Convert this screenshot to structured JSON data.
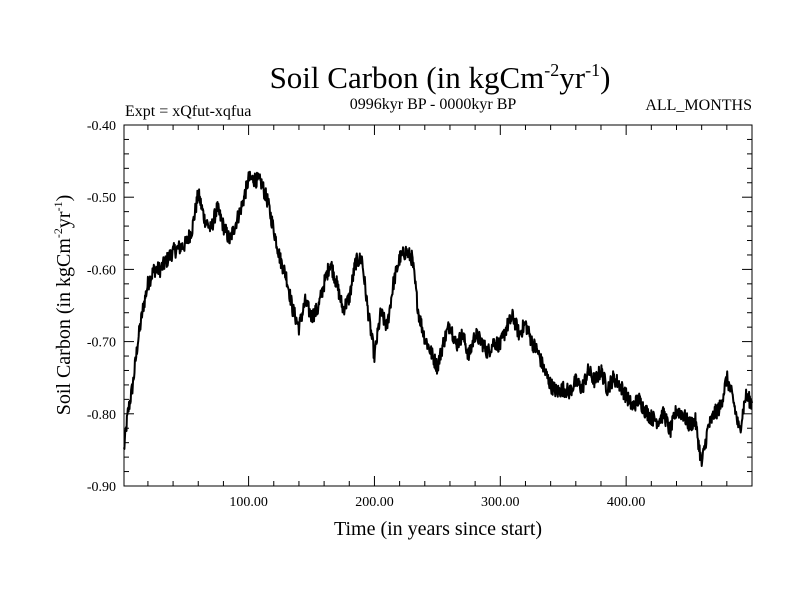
{
  "chart_data": {
    "type": "line",
    "title": {
      "main": "Soil Carbon (in kgCm",
      "sup1": "-2",
      "mid": "yr",
      "sup2": "-1",
      "end": ")"
    },
    "expt_label": "Expt = xQfut-xqfua",
    "period_label": "0996kyr BP - 0000kyr BP",
    "months_label": "ALL_MONTHS",
    "ylabel": {
      "main": "Soil Carbon (in kgCm",
      "sup1": "-2",
      "mid": "yr",
      "sup2": "-1",
      "end": ")"
    },
    "xlabel": "Time (in years since start)",
    "xlim": [
      1,
      500
    ],
    "ylim": [
      -0.9,
      -0.4
    ],
    "xticks": [
      100,
      200,
      300,
      400
    ],
    "xtick_labels": [
      "100.00",
      "200.00",
      "300.00",
      "400.00"
    ],
    "yticks": [
      -0.4,
      -0.5,
      -0.6,
      -0.7,
      -0.8,
      -0.9
    ],
    "ytick_labels": [
      "-0.40",
      "-0.50",
      "-0.60",
      "-0.70",
      "-0.80",
      "-0.90"
    ],
    "series": [
      {
        "name": "Soil Carbon",
        "color": "#000000",
        "x": [
          1,
          4,
          8,
          12,
          16,
          20,
          25,
          30,
          40,
          50,
          55,
          60,
          65,
          70,
          75,
          80,
          85,
          90,
          95,
          100,
          105,
          110,
          115,
          120,
          125,
          130,
          135,
          140,
          145,
          150,
          155,
          160,
          165,
          170,
          175,
          180,
          185,
          190,
          195,
          200,
          205,
          210,
          215,
          220,
          225,
          230,
          235,
          240,
          245,
          250,
          255,
          260,
          265,
          270,
          275,
          280,
          285,
          290,
          295,
          300,
          305,
          310,
          315,
          320,
          325,
          330,
          335,
          340,
          345,
          350,
          355,
          360,
          365,
          370,
          375,
          380,
          385,
          390,
          395,
          400,
          405,
          410,
          415,
          420,
          425,
          430,
          435,
          440,
          445,
          450,
          455,
          460,
          465,
          470,
          475,
          480,
          485,
          490,
          495,
          500
        ],
        "y": [
          -0.85,
          -0.8,
          -0.76,
          -0.7,
          -0.655,
          -0.62,
          -0.6,
          -0.6,
          -0.575,
          -0.565,
          -0.545,
          -0.495,
          -0.53,
          -0.545,
          -0.515,
          -0.54,
          -0.56,
          -0.535,
          -0.51,
          -0.475,
          -0.475,
          -0.48,
          -0.505,
          -0.545,
          -0.585,
          -0.61,
          -0.655,
          -0.68,
          -0.645,
          -0.665,
          -0.655,
          -0.62,
          -0.59,
          -0.62,
          -0.655,
          -0.64,
          -0.59,
          -0.585,
          -0.66,
          -0.72,
          -0.66,
          -0.68,
          -0.62,
          -0.585,
          -0.575,
          -0.585,
          -0.66,
          -0.695,
          -0.715,
          -0.735,
          -0.7,
          -0.675,
          -0.705,
          -0.69,
          -0.72,
          -0.69,
          -0.7,
          -0.715,
          -0.7,
          -0.705,
          -0.68,
          -0.665,
          -0.69,
          -0.675,
          -0.7,
          -0.715,
          -0.74,
          -0.76,
          -0.77,
          -0.765,
          -0.77,
          -0.755,
          -0.765,
          -0.74,
          -0.755,
          -0.74,
          -0.765,
          -0.75,
          -0.76,
          -0.775,
          -0.79,
          -0.78,
          -0.795,
          -0.805,
          -0.81,
          -0.8,
          -0.825,
          -0.795,
          -0.8,
          -0.815,
          -0.81,
          -0.87,
          -0.82,
          -0.8,
          -0.79,
          -0.75,
          -0.78,
          -0.825,
          -0.775,
          -0.785
        ]
      }
    ]
  }
}
